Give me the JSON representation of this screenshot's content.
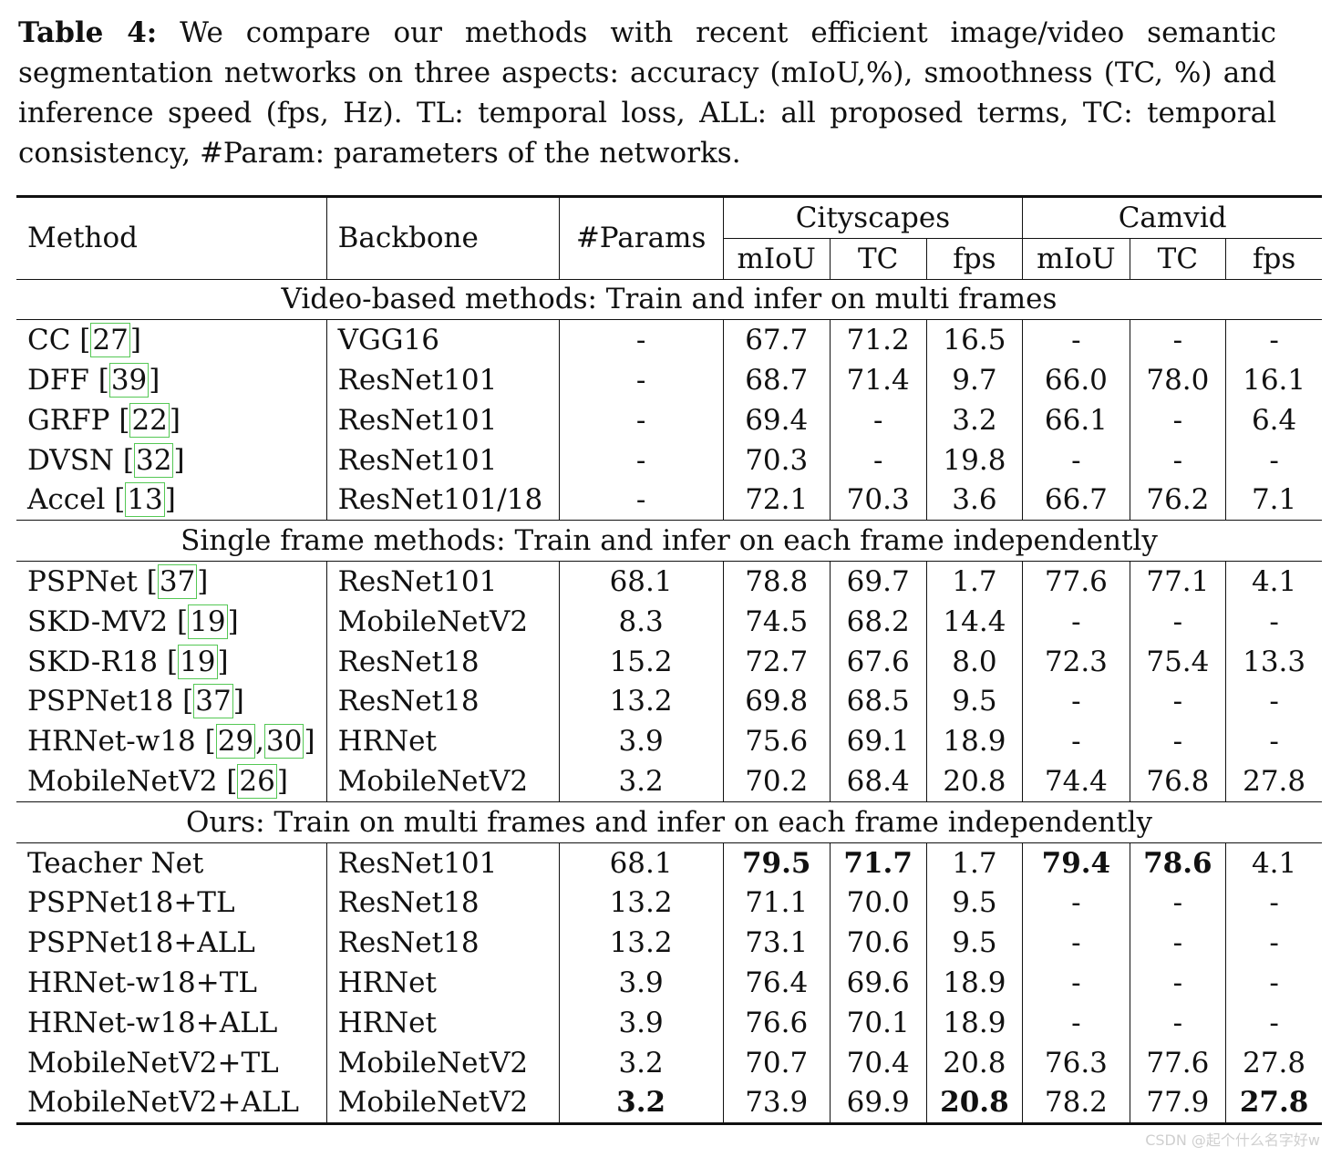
{
  "caption": {
    "label": "Table 4:",
    "text": "We compare our methods with recent efficient image/video semantic segmentation networks on three aspects: accuracy (mIoU,%), smoothness (TC, %) and inference speed (fps, Hz). TL: temporal loss, ALL: all proposed terms, TC: temporal consistency, #Param: parameters of the networks."
  },
  "header": {
    "method": "Method",
    "backbone": "Backbone",
    "params": "#Params",
    "cityscapes": "Cityscapes",
    "camvid": "Camvid",
    "sub": [
      "mIoU",
      "TC",
      "fps",
      "mIoU",
      "TC",
      "fps"
    ]
  },
  "sections": [
    {
      "title": "Video-based methods: Train and infer on multi frames",
      "rows": [
        {
          "method": "CC",
          "refs": [
            "27"
          ],
          "backbone": "VGG16",
          "params": "-",
          "vals": [
            "67.7",
            "71.2",
            "16.5",
            "-",
            "-",
            "-"
          ],
          "bold": []
        },
        {
          "method": "DFF",
          "refs": [
            "39"
          ],
          "backbone": "ResNet101",
          "params": "-",
          "vals": [
            "68.7",
            "71.4",
            "9.7",
            "66.0",
            "78.0",
            "16.1"
          ],
          "bold": []
        },
        {
          "method": "GRFP",
          "refs": [
            "22"
          ],
          "backbone": "ResNet101",
          "params": "-",
          "vals": [
            "69.4",
            "-",
            "3.2",
            "66.1",
            "-",
            "6.4"
          ],
          "bold": []
        },
        {
          "method": "DVSN",
          "refs": [
            "32"
          ],
          "backbone": "ResNet101",
          "params": "-",
          "vals": [
            "70.3",
            "-",
            "19.8",
            "-",
            "-",
            "-"
          ],
          "bold": []
        },
        {
          "method": "Accel",
          "refs": [
            "13"
          ],
          "backbone": "ResNet101/18",
          "params": "-",
          "vals": [
            "72.1",
            "70.3",
            "3.6",
            "66.7",
            "76.2",
            "7.1"
          ],
          "bold": []
        }
      ]
    },
    {
      "title": "Single frame methods: Train and infer on each frame independently",
      "rows": [
        {
          "method": "PSPNet",
          "refs": [
            "37"
          ],
          "backbone": "ResNet101",
          "params": "68.1",
          "vals": [
            "78.8",
            "69.7",
            "1.7",
            "77.6",
            "77.1",
            "4.1"
          ],
          "bold": []
        },
        {
          "method": "SKD-MV2",
          "refs": [
            "19"
          ],
          "backbone": "MobileNetV2",
          "params": "8.3",
          "vals": [
            "74.5",
            "68.2",
            "14.4",
            "-",
            "-",
            "-"
          ],
          "bold": []
        },
        {
          "method": "SKD-R18",
          "refs": [
            "19"
          ],
          "backbone": "ResNet18",
          "params": "15.2",
          "vals": [
            "72.7",
            "67.6",
            "8.0",
            "72.3",
            "75.4",
            "13.3"
          ],
          "bold": []
        },
        {
          "method": "PSPNet18",
          "refs": [
            "37"
          ],
          "backbone": "ResNet18",
          "params": "13.2",
          "vals": [
            "69.8",
            "68.5",
            "9.5",
            "-",
            "-",
            "-"
          ],
          "bold": []
        },
        {
          "method": "HRNet-w18",
          "refs": [
            "29",
            "30"
          ],
          "backbone": "HRNet",
          "params": "3.9",
          "vals": [
            "75.6",
            "69.1",
            "18.9",
            "-",
            "-",
            "-"
          ],
          "bold": []
        },
        {
          "method": "MobileNetV2",
          "refs": [
            "26"
          ],
          "backbone": "MobileNetV2",
          "params": "3.2",
          "vals": [
            "70.2",
            "68.4",
            "20.8",
            "74.4",
            "76.8",
            "27.8"
          ],
          "bold": []
        }
      ]
    },
    {
      "title": "Ours: Train on multi frames and infer on each frame independently",
      "rows": [
        {
          "method": "Teacher Net",
          "refs": [],
          "backbone": "ResNet101",
          "params": "68.1",
          "vals": [
            "79.5",
            "71.7",
            "1.7",
            "79.4",
            "78.6",
            "4.1"
          ],
          "bold": [
            0,
            1,
            3,
            4
          ]
        },
        {
          "method": "PSPNet18+TL",
          "refs": [],
          "backbone": "ResNet18",
          "params": "13.2",
          "vals": [
            "71.1",
            "70.0",
            "9.5",
            "-",
            "-",
            "-"
          ],
          "bold": []
        },
        {
          "method": "PSPNet18+ALL",
          "refs": [],
          "backbone": "ResNet18",
          "params": "13.2",
          "vals": [
            "73.1",
            "70.6",
            "9.5",
            "-",
            "-",
            "-"
          ],
          "bold": []
        },
        {
          "method": "HRNet-w18+TL",
          "refs": [],
          "backbone": "HRNet",
          "params": "3.9",
          "vals": [
            "76.4",
            "69.6",
            "18.9",
            "-",
            "-",
            "-"
          ],
          "bold": []
        },
        {
          "method": "HRNet-w18+ALL",
          "refs": [],
          "backbone": "HRNet",
          "params": "3.9",
          "vals": [
            "76.6",
            "70.1",
            "18.9",
            "-",
            "-",
            "-"
          ],
          "bold": []
        },
        {
          "method": "MobileNetV2+TL",
          "refs": [],
          "backbone": "MobileNetV2",
          "params": "3.2",
          "vals": [
            "70.7",
            "70.4",
            "20.8",
            "76.3",
            "77.6",
            "27.8"
          ],
          "bold": []
        },
        {
          "method": "MobileNetV2+ALL",
          "refs": [],
          "backbone": "MobileNetV2",
          "params": "3.2",
          "params_bold": true,
          "vals": [
            "73.9",
            "69.9",
            "20.8",
            "78.2",
            "77.9",
            "27.8"
          ],
          "bold": [
            2,
            5
          ]
        }
      ]
    }
  ],
  "watermark": "CSDN @起个什么名字好w",
  "colors": {
    "ref_box": "#55c855",
    "rule": "#111111"
  }
}
